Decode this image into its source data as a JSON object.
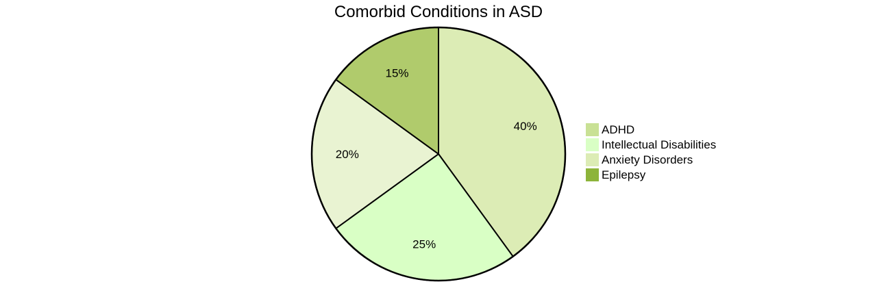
{
  "chart_data": {
    "type": "pie",
    "title": "Comorbid Conditions in ASD",
    "legend_position": "right",
    "slices": [
      {
        "label": "ADHD",
        "value": 40,
        "display": "40%",
        "legend_color": "#c9e195",
        "slice_color": "#dcecb5"
      },
      {
        "label": "Intellectual Disabilities",
        "value": 25,
        "display": "25%",
        "legend_color": "#d9ffc5",
        "slice_color": "#d9ffc5"
      },
      {
        "label": "Anxiety Disorders",
        "value": 20,
        "display": "20%",
        "legend_color": "#dcecb5",
        "slice_color": "#e9f3d2"
      },
      {
        "label": "Epilepsy",
        "value": 15,
        "display": "15%",
        "legend_color": "#8db43a",
        "slice_color": "#b0cb6c"
      }
    ]
  }
}
